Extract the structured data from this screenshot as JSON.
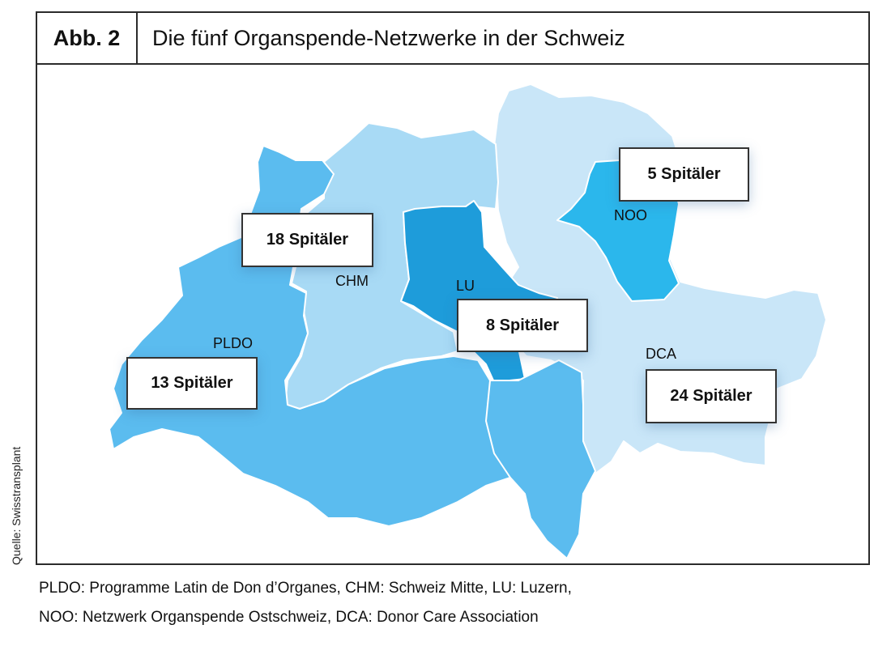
{
  "figure": {
    "number": "Abb. 2",
    "title": "Die fünf Organspende-Netzwerke in der Schweiz"
  },
  "colors": {
    "PLDO": "#5bbcef",
    "CHM": "#a8daf5",
    "LU": "#1e9cda",
    "NOO": "#2bb7ec",
    "DCA": "#c9e6f8",
    "border": "#ffffff"
  },
  "regions": [
    {
      "code": "PLDO",
      "hospitals": "13 Spitäler"
    },
    {
      "code": "CHM",
      "hospitals": "18 Spitäler"
    },
    {
      "code": "LU",
      "hospitals": "8 Spitäler"
    },
    {
      "code": "NOO",
      "hospitals": "5 Spitäler"
    },
    {
      "code": "DCA",
      "hospitals": "24 Spitäler"
    }
  ],
  "source": "Quelle: Swisstransplant",
  "legend": [
    "PLDO: Programme Latin de Don d’Organes, CHM: Schweiz Mitte, LU: Luzern,",
    "NOO: Netzwerk Organspende Ostschweiz, DCA: Donor Care Association"
  ]
}
